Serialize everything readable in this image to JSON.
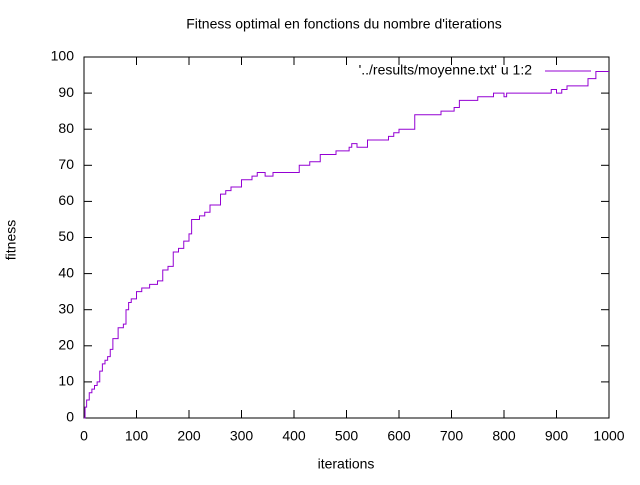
{
  "chart_data": {
    "type": "line",
    "title": "Fitness optimal en fonctions du nombre d'iterations",
    "x_label": "iterations",
    "y_label": "fitness",
    "xlim": [
      0,
      1000
    ],
    "xticks": [
      0,
      100,
      200,
      300,
      400,
      500,
      600,
      700,
      800,
      900,
      1000
    ],
    "ylim": [
      0,
      100
    ],
    "yticks": [
      0,
      10,
      20,
      30,
      40,
      50,
      60,
      70,
      80,
      90,
      100
    ],
    "legend": "top-right",
    "series": [
      {
        "name": "'../results/moyenne.txt' u 1:2",
        "color": "#9400d3",
        "x": [
          0,
          2,
          2,
          5,
          5,
          10,
          10,
          15,
          15,
          20,
          20,
          25,
          25,
          30,
          30,
          35,
          35,
          40,
          40,
          45,
          45,
          50,
          50,
          55,
          55,
          65,
          65,
          75,
          75,
          80,
          80,
          85,
          85,
          90,
          90,
          100,
          100,
          110,
          110,
          125,
          125,
          140,
          140,
          150,
          150,
          160,
          160,
          170,
          170,
          180,
          180,
          190,
          190,
          200,
          200,
          205,
          205,
          220,
          220,
          230,
          230,
          240,
          240,
          260,
          260,
          270,
          270,
          280,
          280,
          300,
          300,
          320,
          320,
          330,
          330,
          345,
          345,
          360,
          360,
          410,
          410,
          430,
          430,
          450,
          450,
          480,
          480,
          505,
          505,
          510,
          510,
          520,
          520,
          540,
          540,
          580,
          580,
          590,
          590,
          600,
          600,
          630,
          630,
          680,
          680,
          705,
          705,
          715,
          715,
          750,
          750,
          780,
          780,
          800,
          800,
          805,
          805,
          890,
          890,
          900,
          900,
          910,
          910,
          920,
          920,
          960,
          960,
          975,
          975,
          1000
        ],
        "values": [
          0,
          0,
          3,
          3,
          5,
          5,
          7,
          7,
          8,
          8,
          9,
          9,
          10,
          10,
          13,
          13,
          15,
          15,
          16,
          16,
          17,
          17,
          19,
          19,
          22,
          22,
          25,
          25,
          26,
          26,
          30,
          30,
          32,
          32,
          33,
          33,
          35,
          35,
          36,
          36,
          37,
          37,
          38,
          38,
          41,
          41,
          42,
          42,
          46,
          46,
          47,
          47,
          49,
          49,
          51,
          51,
          55,
          55,
          56,
          56,
          57,
          57,
          59,
          59,
          62,
          62,
          63,
          63,
          64,
          64,
          66,
          66,
          67,
          67,
          68,
          68,
          67,
          67,
          68,
          68,
          70,
          70,
          71,
          71,
          73,
          73,
          74,
          74,
          75,
          75,
          76,
          76,
          75,
          75,
          77,
          77,
          78,
          78,
          79,
          79,
          80,
          80,
          84,
          84,
          85,
          85,
          86,
          86,
          88,
          88,
          89,
          89,
          90,
          90,
          89,
          89,
          90,
          90,
          91,
          91,
          90,
          90,
          91,
          91,
          92,
          92,
          94,
          94,
          96,
          96
        ]
      }
    ]
  }
}
